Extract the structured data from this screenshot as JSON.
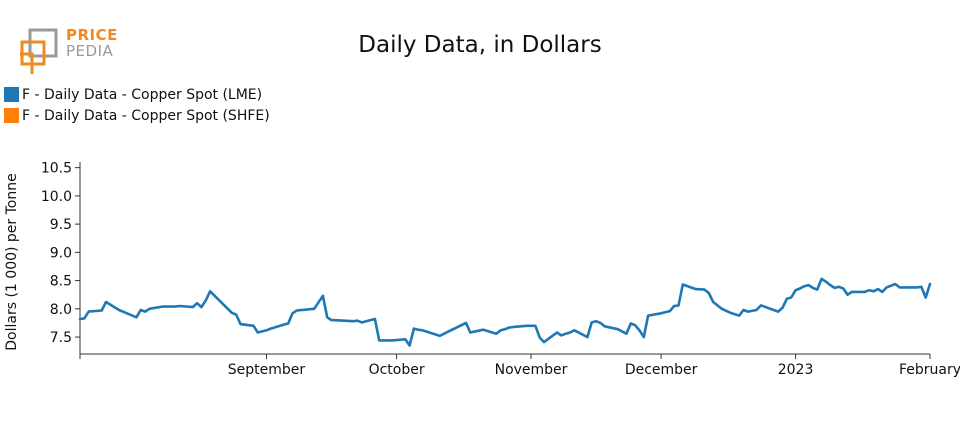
{
  "logo": {
    "line1": "PRICE",
    "line2": "PEDIA"
  },
  "chart_data": {
    "type": "line",
    "title": "Daily Data, in Dollars",
    "xlabel": "",
    "ylabel": "Dollars (1 000) per Tonne",
    "ylim": [
      7.2,
      10.6
    ],
    "yticks": [
      7.5,
      8.0,
      8.5,
      9.0,
      9.5,
      10.0,
      10.5
    ],
    "xrange": [
      "2022-07-20",
      "2023-02-01"
    ],
    "xticks": [
      {
        "date": "2022-09-01",
        "label": "September"
      },
      {
        "date": "2022-10-01",
        "label": "October"
      },
      {
        "date": "2022-11-01",
        "label": "November"
      },
      {
        "date": "2022-12-01",
        "label": "December"
      },
      {
        "date": "2023-01-01",
        "label": "2023"
      },
      {
        "date": "2023-02-01",
        "label": "February"
      }
    ],
    "grid": false,
    "legend": "top-left",
    "series": [
      {
        "name": "F - Daily Data - Copper Spot (LME)",
        "color": "#1f77b4",
        "points": [
          [
            "2022-07-20",
            7.82
          ],
          [
            "2022-07-21",
            7.83
          ],
          [
            "2022-07-22",
            7.95
          ],
          [
            "2022-07-25",
            7.97
          ],
          [
            "2022-07-26",
            8.12
          ],
          [
            "2022-07-29",
            7.98
          ],
          [
            "2022-08-02",
            7.85
          ],
          [
            "2022-08-03",
            7.98
          ],
          [
            "2022-08-04",
            7.95
          ],
          [
            "2022-08-05",
            8.0
          ],
          [
            "2022-08-08",
            8.04
          ],
          [
            "2022-08-11",
            8.04
          ],
          [
            "2022-08-12",
            8.05
          ],
          [
            "2022-08-15",
            8.03
          ],
          [
            "2022-08-16",
            8.1
          ],
          [
            "2022-08-17",
            8.03
          ],
          [
            "2022-08-18",
            8.15
          ],
          [
            "2022-08-19",
            8.31
          ],
          [
            "2022-08-24",
            7.93
          ],
          [
            "2022-08-25",
            7.9
          ],
          [
            "2022-08-26",
            7.73
          ],
          [
            "2022-08-29",
            7.7
          ],
          [
            "2022-08-30",
            7.58
          ],
          [
            "2022-09-01",
            7.62
          ],
          [
            "2022-09-02",
            7.65
          ],
          [
            "2022-09-05",
            7.72
          ],
          [
            "2022-09-06",
            7.74
          ],
          [
            "2022-09-07",
            7.92
          ],
          [
            "2022-09-08",
            7.97
          ],
          [
            "2022-09-12",
            8.0
          ],
          [
            "2022-09-14",
            8.23
          ],
          [
            "2022-09-15",
            7.85
          ],
          [
            "2022-09-16",
            7.8
          ],
          [
            "2022-09-19",
            7.79
          ],
          [
            "2022-09-21",
            7.78
          ],
          [
            "2022-09-22",
            7.79
          ],
          [
            "2022-09-23",
            7.76
          ],
          [
            "2022-09-26",
            7.82
          ],
          [
            "2022-09-27",
            7.44
          ],
          [
            "2022-09-28",
            7.44
          ],
          [
            "2022-09-29",
            7.44
          ],
          [
            "2022-09-30",
            7.44
          ],
          [
            "2022-10-03",
            7.46
          ],
          [
            "2022-10-04",
            7.35
          ],
          [
            "2022-10-05",
            7.65
          ],
          [
            "2022-10-06",
            7.63
          ],
          [
            "2022-10-07",
            7.62
          ],
          [
            "2022-10-11",
            7.52
          ],
          [
            "2022-10-13",
            7.6
          ],
          [
            "2022-10-17",
            7.75
          ],
          [
            "2022-10-18",
            7.58
          ],
          [
            "2022-10-21",
            7.63
          ],
          [
            "2022-10-24",
            7.56
          ],
          [
            "2022-10-25",
            7.62
          ],
          [
            "2022-10-26",
            7.64
          ],
          [
            "2022-10-27",
            7.67
          ],
          [
            "2022-10-28",
            7.68
          ],
          [
            "2022-10-31",
            7.7
          ],
          [
            "2022-11-02",
            7.7
          ],
          [
            "2022-11-03",
            7.49
          ],
          [
            "2022-11-04",
            7.41
          ],
          [
            "2022-11-07",
            7.58
          ],
          [
            "2022-11-08",
            7.53
          ],
          [
            "2022-11-09",
            7.56
          ],
          [
            "2022-11-10",
            7.58
          ],
          [
            "2022-11-11",
            7.62
          ],
          [
            "2022-11-14",
            7.5
          ],
          [
            "2022-11-15",
            7.76
          ],
          [
            "2022-11-16",
            7.78
          ],
          [
            "2022-11-17",
            7.75
          ],
          [
            "2022-11-18",
            7.69
          ],
          [
            "2022-11-21",
            7.64
          ],
          [
            "2022-11-23",
            7.56
          ],
          [
            "2022-11-24",
            7.74
          ],
          [
            "2022-11-25",
            7.71
          ],
          [
            "2022-11-26",
            7.62
          ],
          [
            "2022-11-27",
            7.5
          ],
          [
            "2022-11-28",
            7.88
          ],
          [
            "2022-12-01",
            7.92
          ],
          [
            "2022-12-03",
            7.96
          ],
          [
            "2022-12-04",
            8.05
          ],
          [
            "2022-12-05",
            8.06
          ],
          [
            "2022-12-06",
            8.43
          ],
          [
            "2022-12-09",
            8.35
          ],
          [
            "2022-12-11",
            8.34
          ],
          [
            "2022-12-12",
            8.28
          ],
          [
            "2022-12-13",
            8.12
          ],
          [
            "2022-12-15",
            8.0
          ],
          [
            "2022-12-17",
            7.93
          ],
          [
            "2022-12-19",
            7.88
          ],
          [
            "2022-12-20",
            7.98
          ],
          [
            "2022-12-21",
            7.95
          ],
          [
            "2022-12-23",
            7.98
          ],
          [
            "2022-12-24",
            8.06
          ],
          [
            "2022-12-28",
            7.95
          ],
          [
            "2022-12-29",
            8.02
          ],
          [
            "2022-12-30",
            8.18
          ],
          [
            "2022-12-31",
            8.2
          ],
          [
            "2023-01-01",
            8.33
          ],
          [
            "2023-01-02",
            8.36
          ],
          [
            "2023-01-03",
            8.4
          ],
          [
            "2023-01-04",
            8.42
          ],
          [
            "2023-01-05",
            8.37
          ],
          [
            "2023-01-06",
            8.34
          ],
          [
            "2023-01-07",
            8.53
          ],
          [
            "2023-01-08",
            8.48
          ],
          [
            "2023-01-09",
            8.42
          ],
          [
            "2023-01-10",
            8.37
          ],
          [
            "2023-01-11",
            8.39
          ],
          [
            "2023-01-12",
            8.36
          ],
          [
            "2023-01-13",
            8.25
          ],
          [
            "2023-01-14",
            8.3
          ],
          [
            "2023-01-17",
            8.3
          ],
          [
            "2023-01-18",
            8.33
          ],
          [
            "2023-01-19",
            8.31
          ],
          [
            "2023-01-20",
            8.35
          ],
          [
            "2023-01-21",
            8.3
          ],
          [
            "2023-01-22",
            8.38
          ],
          [
            "2023-01-24",
            8.44
          ],
          [
            "2023-01-25",
            8.38
          ],
          [
            "2023-01-28",
            8.38
          ],
          [
            "2023-01-29",
            8.38
          ],
          [
            "2023-01-30",
            8.39
          ],
          [
            "2023-01-31",
            8.2
          ],
          [
            "2023-02-01",
            8.44
          ]
        ]
      },
      {
        "name": "F - Daily Data - Copper Spot (SHFE)",
        "color": "#ff7f0e",
        "points": []
      }
    ]
  }
}
